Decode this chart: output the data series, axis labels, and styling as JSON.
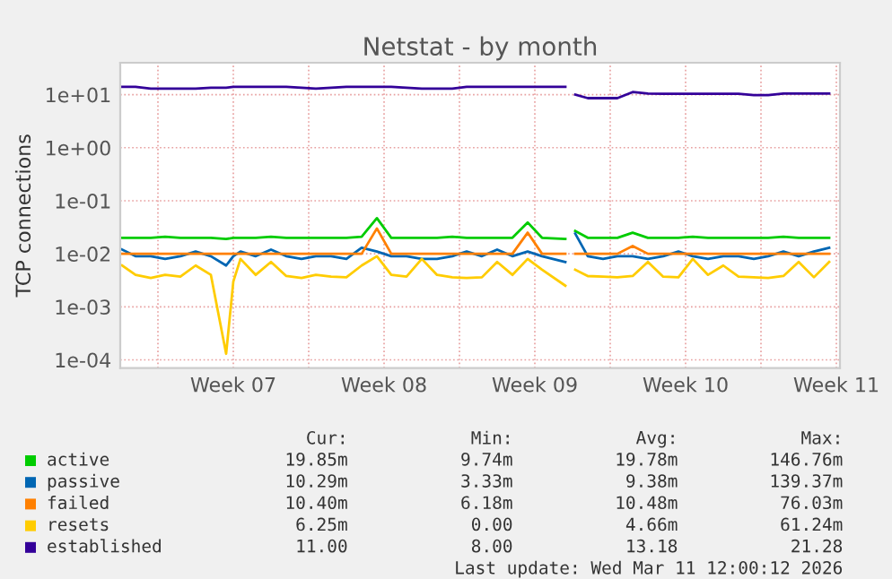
{
  "chart_data": {
    "type": "line",
    "title": "Netstat - by month",
    "ylabel": "TCP connections",
    "log": "y",
    "grid": true,
    "legend": "bottom",
    "marker": "none",
    "line_style": "solid",
    "x": [
      "2026-02-07T08:00",
      "2026-02-07T23:00",
      "2026-02-08T16:00",
      "2026-02-09T08:00",
      "2026-02-10T01:00",
      "2026-02-10T18:00",
      "2026-02-11T11:00",
      "2026-02-12T04:00",
      "2026-02-12T12:00",
      "2026-02-12T20:00",
      "2026-02-13T13:00",
      "2026-02-14T06:00",
      "2026-02-14T23:00",
      "2026-02-15T16:00",
      "2026-02-16T08:00",
      "2026-02-17T01:00",
      "2026-02-17T18:00",
      "2026-02-18T11:00",
      "2026-02-19T04:00",
      "2026-02-19T20:00",
      "2026-02-20T13:00",
      "2026-02-21T06:00",
      "2026-02-21T23:00",
      "2026-02-22T16:00",
      "2026-02-23T08:00",
      "2026-02-24T01:00",
      "2026-02-24T18:00",
      "2026-02-25T11:00",
      "2026-02-26T04:00",
      "2026-02-26T20:00",
      "2026-02-27T22:00",
      "2026-02-28T04:00",
      "2026-02-28T09:00",
      "2026-02-28T23:00",
      "2026-03-01T16:00",
      "2026-03-02T08:00",
      "2026-03-03T01:00",
      "2026-03-03T18:00",
      "2026-03-04T11:00",
      "2026-03-05T04:00",
      "2026-03-05T20:00",
      "2026-03-06T13:00",
      "2026-03-07T06:00",
      "2026-03-07T23:00",
      "2026-03-08T16:00",
      "2026-03-09T08:00",
      "2026-03-10T01:00",
      "2026-03-10T18:00",
      "2026-03-11T11:00",
      "2026-03-12T04:00"
    ],
    "xlim": [
      "2026-02-07T06:00",
      "2026-03-12T16:00"
    ],
    "xticks": [
      {
        "value": "2026-02-09",
        "label": null
      },
      {
        "value": "2026-02-12T12:00",
        "label": "Week 07"
      },
      {
        "value": "2026-02-16",
        "label": null
      },
      {
        "value": "2026-02-19T12:00",
        "label": "Week 08"
      },
      {
        "value": "2026-02-23",
        "label": null
      },
      {
        "value": "2026-02-26T12:00",
        "label": "Week 09"
      },
      {
        "value": "2026-03-02",
        "label": null
      },
      {
        "value": "2026-03-05T12:00",
        "label": "Week 10"
      },
      {
        "value": "2026-03-09",
        "label": null
      },
      {
        "value": "2026-03-12T12:00",
        "label": "Week 11"
      }
    ],
    "ylim": [
      7e-05,
      40
    ],
    "yticks": [
      {
        "value": 0.0001,
        "label": "1e-04"
      },
      {
        "value": 0.001,
        "label": "1e-03"
      },
      {
        "value": 0.01,
        "label": "1e-02"
      },
      {
        "value": 0.1,
        "label": "1e-01"
      },
      {
        "value": 1,
        "label": "1e+00"
      },
      {
        "value": 10,
        "label": "1e+01"
      }
    ],
    "series": [
      {
        "name": "active",
        "color": "#00cc00",
        "values": [
          0.02,
          0.02,
          0.02,
          0.021,
          0.02,
          0.02,
          0.02,
          0.019,
          0.02,
          0.02,
          0.02,
          0.021,
          0.02,
          0.02,
          0.02,
          0.02,
          0.02,
          0.021,
          0.047,
          0.02,
          0.02,
          0.02,
          0.02,
          0.021,
          0.02,
          0.02,
          0.02,
          0.02,
          0.039,
          0.02,
          0.019,
          null,
          0.027,
          0.02,
          0.02,
          0.02,
          0.025,
          0.02,
          0.02,
          0.02,
          0.021,
          0.02,
          0.02,
          0.02,
          0.02,
          0.02,
          0.021,
          0.02,
          0.02,
          0.02
        ]
      },
      {
        "name": "passive",
        "color": "#0066b3",
        "values": [
          0.012,
          0.009,
          0.009,
          0.008,
          0.009,
          0.011,
          0.009,
          0.006,
          0.009,
          0.011,
          0.009,
          0.012,
          0.009,
          0.008,
          0.009,
          0.009,
          0.008,
          0.013,
          0.011,
          0.009,
          0.009,
          0.008,
          0.008,
          0.009,
          0.011,
          0.009,
          0.012,
          0.009,
          0.011,
          0.009,
          0.007,
          null,
          0.024,
          0.009,
          0.008,
          0.009,
          0.009,
          0.008,
          0.009,
          0.011,
          0.009,
          0.008,
          0.009,
          0.009,
          0.008,
          0.009,
          0.011,
          0.009,
          0.011,
          0.013
        ]
      },
      {
        "name": "failed",
        "color": "#ff8000",
        "values": [
          0.01,
          0.01,
          0.01,
          0.01,
          0.01,
          0.01,
          0.01,
          0.01,
          0.01,
          0.01,
          0.01,
          0.01,
          0.01,
          0.01,
          0.01,
          0.01,
          0.01,
          0.01,
          0.03,
          0.01,
          0.01,
          0.01,
          0.01,
          0.01,
          0.01,
          0.01,
          0.01,
          0.01,
          0.025,
          0.01,
          0.01,
          null,
          0.01,
          0.01,
          0.01,
          0.01,
          0.014,
          0.01,
          0.01,
          0.01,
          0.01,
          0.01,
          0.01,
          0.01,
          0.01,
          0.01,
          0.01,
          0.01,
          0.01,
          0.01
        ]
      },
      {
        "name": "resets",
        "color": "#ffcc00",
        "values": [
          0.006,
          0.004,
          0.0035,
          0.004,
          0.0037,
          0.006,
          0.004,
          0.00013,
          0.003,
          0.008,
          0.004,
          0.007,
          0.0038,
          0.0035,
          0.004,
          0.0037,
          0.0036,
          0.006,
          0.009,
          0.004,
          0.0037,
          0.008,
          0.004,
          0.0036,
          0.0035,
          0.0036,
          0.007,
          0.004,
          0.008,
          0.005,
          0.0025,
          null,
          0.005,
          0.0038,
          0.0037,
          0.0036,
          0.0038,
          0.007,
          0.0037,
          0.0036,
          0.008,
          0.004,
          0.006,
          0.0037,
          0.0036,
          0.0035,
          0.0038,
          0.007,
          0.0036,
          0.007
        ]
      },
      {
        "name": "established",
        "color": "#330099",
        "values": [
          14,
          14,
          13,
          13,
          13,
          13,
          13.5,
          13.5,
          14,
          14,
          14,
          14,
          14,
          13.5,
          13,
          13.5,
          14,
          14,
          14,
          14,
          13.5,
          13,
          13,
          13,
          14,
          14,
          14,
          14,
          14,
          14,
          14,
          null,
          10,
          8.6,
          8.6,
          8.6,
          11.2,
          10.5,
          10.4,
          10.4,
          10.4,
          10.4,
          10.4,
          10.4,
          9.8,
          9.8,
          10.5,
          10.5,
          10.5,
          10.5
        ]
      }
    ],
    "annotations": [
      "Cur:",
      "Min:",
      "Avg:",
      "Max:",
      "19.85m",
      "9.74m",
      "19.78m",
      "146.76m",
      "10.29m",
      "3.33m",
      "9.38m",
      "139.37m",
      "10.40m",
      "6.18m",
      "10.48m",
      "76.03m",
      "6.25m",
      "0.00",
      "4.66m",
      "61.24m",
      "11.00",
      "8.00",
      "13.18",
      "21.28",
      "Last update: Wed Mar 11 12:00:12 2026"
    ]
  }
}
